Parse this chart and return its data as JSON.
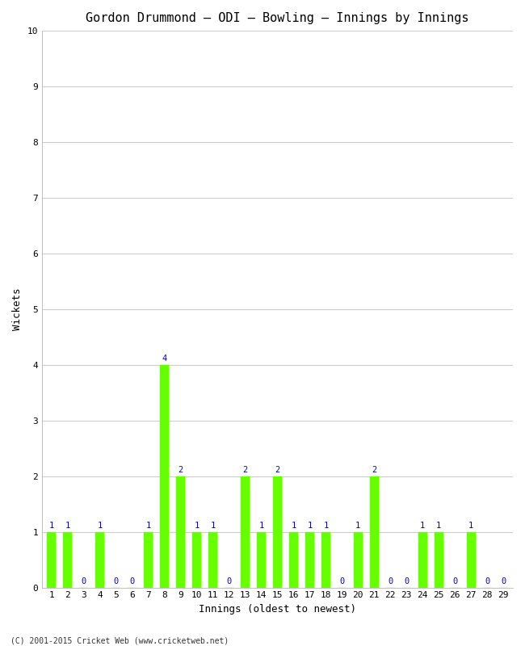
{
  "title": "Gordon Drummond – ODI – Bowling – Innings by Innings",
  "xlabel": "Innings (oldest to newest)",
  "ylabel": "Wickets",
  "innings": [
    1,
    2,
    3,
    4,
    5,
    6,
    7,
    8,
    9,
    10,
    11,
    12,
    13,
    14,
    15,
    16,
    17,
    18,
    19,
    20,
    21,
    22,
    23,
    24,
    25,
    26,
    27,
    28,
    29
  ],
  "wickets": [
    1,
    1,
    0,
    1,
    0,
    0,
    1,
    4,
    2,
    1,
    1,
    0,
    2,
    1,
    2,
    1,
    1,
    1,
    0,
    1,
    2,
    0,
    0,
    1,
    1,
    0,
    1,
    0,
    0
  ],
  "bar_color": "#66ff00",
  "bar_edge_color": "#66ff00",
  "label_color": "#0000cc",
  "ylim": [
    0,
    10
  ],
  "yticks": [
    0,
    1,
    2,
    3,
    4,
    5,
    6,
    7,
    8,
    9,
    10
  ],
  "plot_background_color": "#ffffff",
  "fig_background_color": "#ffffff",
  "grid_color": "#cccccc",
  "title_fontsize": 11,
  "axis_label_fontsize": 9,
  "tick_label_fontsize": 8,
  "bar_label_fontsize": 7.5,
  "footer": "(C) 2001-2015 Cricket Web (www.cricketweb.net)"
}
